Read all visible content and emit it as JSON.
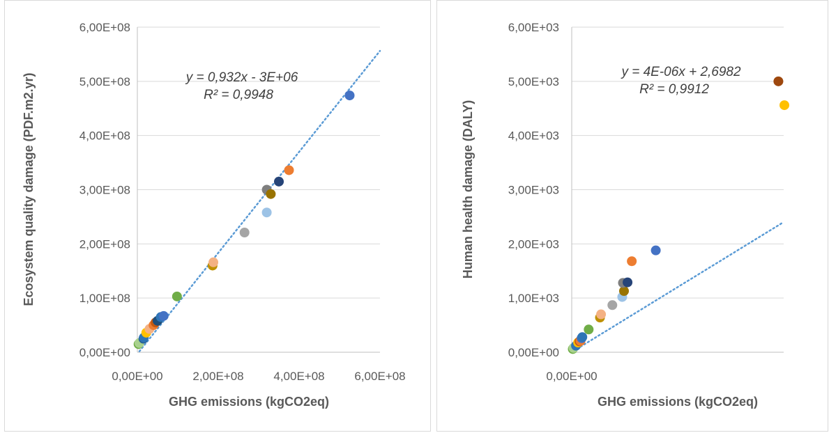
{
  "chart_data": [
    {
      "type": "scatter",
      "xlabel": "GHG emissions (kgCO2eq)",
      "ylabel": "Ecosystem quality damage (PDF.m2.yr)",
      "xlim": [
        0,
        600000000
      ],
      "ylim": [
        0,
        600000000
      ],
      "x_ticks": [
        "0,00E+00",
        "2,00E+08",
        "4,00E+08",
        "6,00E+08"
      ],
      "y_ticks": [
        "0,00E+00",
        "1,00E+08",
        "2,00E+08",
        "3,00E+08",
        "4,00E+08",
        "5,00E+08",
        "6,00E+08"
      ],
      "trendline": {
        "slope": 0.932,
        "intercept": -3000000,
        "equation": "y = 0,932x - 3E+06",
        "r2": "R² = 0,9948"
      },
      "grid": true,
      "points": [
        {
          "x": 3000000,
          "y": 15000000,
          "color": "#70ad47"
        },
        {
          "x": 5000000,
          "y": 17000000,
          "color": "#a9d18e"
        },
        {
          "x": 15000000,
          "y": 25000000,
          "color": "#255e91"
        },
        {
          "x": 16000000,
          "y": 27000000,
          "color": "#2e75b6"
        },
        {
          "x": 22000000,
          "y": 36000000,
          "color": "#ffc000"
        },
        {
          "x": 30000000,
          "y": 43000000,
          "color": "#f4b183"
        },
        {
          "x": 40000000,
          "y": 50000000,
          "color": "#ed7d31"
        },
        {
          "x": 45000000,
          "y": 55000000,
          "color": "#c55a11"
        },
        {
          "x": 50000000,
          "y": 58000000,
          "color": "#1f4e79"
        },
        {
          "x": 58000000,
          "y": 65000000,
          "color": "#2e75b6"
        },
        {
          "x": 65000000,
          "y": 67000000,
          "color": "#4472c4"
        },
        {
          "x": 98000000,
          "y": 103000000,
          "color": "#70ad47"
        },
        {
          "x": 186000000,
          "y": 160000000,
          "color": "#bf9000"
        },
        {
          "x": 188000000,
          "y": 166000000,
          "color": "#f4b183"
        },
        {
          "x": 265000000,
          "y": 221000000,
          "color": "#a5a5a5"
        },
        {
          "x": 320000000,
          "y": 258000000,
          "color": "#9dc3e6"
        },
        {
          "x": 320000000,
          "y": 300000000,
          "color": "#7f7f7f"
        },
        {
          "x": 330000000,
          "y": 292000000,
          "color": "#997300"
        },
        {
          "x": 350000000,
          "y": 315000000,
          "color": "#264478"
        },
        {
          "x": 375000000,
          "y": 336000000,
          "color": "#ed7d31"
        },
        {
          "x": 525000000,
          "y": 474000000,
          "color": "#4472c4"
        }
      ]
    },
    {
      "type": "scatter",
      "xlabel": "GHG emissions (kgCO2eq)",
      "ylabel": "Human health damage (DALY)",
      "xlim": [
        0,
        600000000
      ],
      "ylim": [
        0,
        6000
      ],
      "x_ticks": [
        "0,00E+00"
      ],
      "y_ticks": [
        "0,00E+00",
        "1,00E+03",
        "2,00E+03",
        "3,00E+03",
        "4,00E+03",
        "5,00E+03",
        "6,00E+03"
      ],
      "trendline": {
        "slope": 4e-06,
        "intercept": 2.6982,
        "equation": "y = 4E-06x + 2,6982",
        "r2": "R² = 0,9912"
      },
      "grid": true,
      "points": [
        {
          "x": 3000000,
          "y": 60,
          "color": "#70ad47"
        },
        {
          "x": 5000000,
          "y": 80,
          "color": "#a9d18e"
        },
        {
          "x": 12000000,
          "y": 120,
          "color": "#2e75b6"
        },
        {
          "x": 18000000,
          "y": 180,
          "color": "#ffc000"
        },
        {
          "x": 22000000,
          "y": 200,
          "color": "#c55a11"
        },
        {
          "x": 25000000,
          "y": 210,
          "color": "#ed7d31"
        },
        {
          "x": 28000000,
          "y": 260,
          "color": "#4472c4"
        },
        {
          "x": 30000000,
          "y": 280,
          "color": "#2e75b6"
        },
        {
          "x": 48000000,
          "y": 420,
          "color": "#70ad47"
        },
        {
          "x": 80000000,
          "y": 640,
          "color": "#bf9000"
        },
        {
          "x": 83000000,
          "y": 700,
          "color": "#f4b183"
        },
        {
          "x": 115000000,
          "y": 870,
          "color": "#a5a5a5"
        },
        {
          "x": 143000000,
          "y": 1020,
          "color": "#9dc3e6"
        },
        {
          "x": 148000000,
          "y": 1130,
          "color": "#997300"
        },
        {
          "x": 145000000,
          "y": 1280,
          "color": "#7f7f7f"
        },
        {
          "x": 158000000,
          "y": 1290,
          "color": "#264478"
        },
        {
          "x": 170000000,
          "y": 1680,
          "color": "#ed7d31"
        },
        {
          "x": 238000000,
          "y": 1880,
          "color": "#4472c4"
        },
        {
          "x": 585000000,
          "y": 5000,
          "color": "#9e480e"
        },
        {
          "x": 602000000,
          "y": 4560,
          "color": "#ffc000"
        }
      ]
    }
  ]
}
